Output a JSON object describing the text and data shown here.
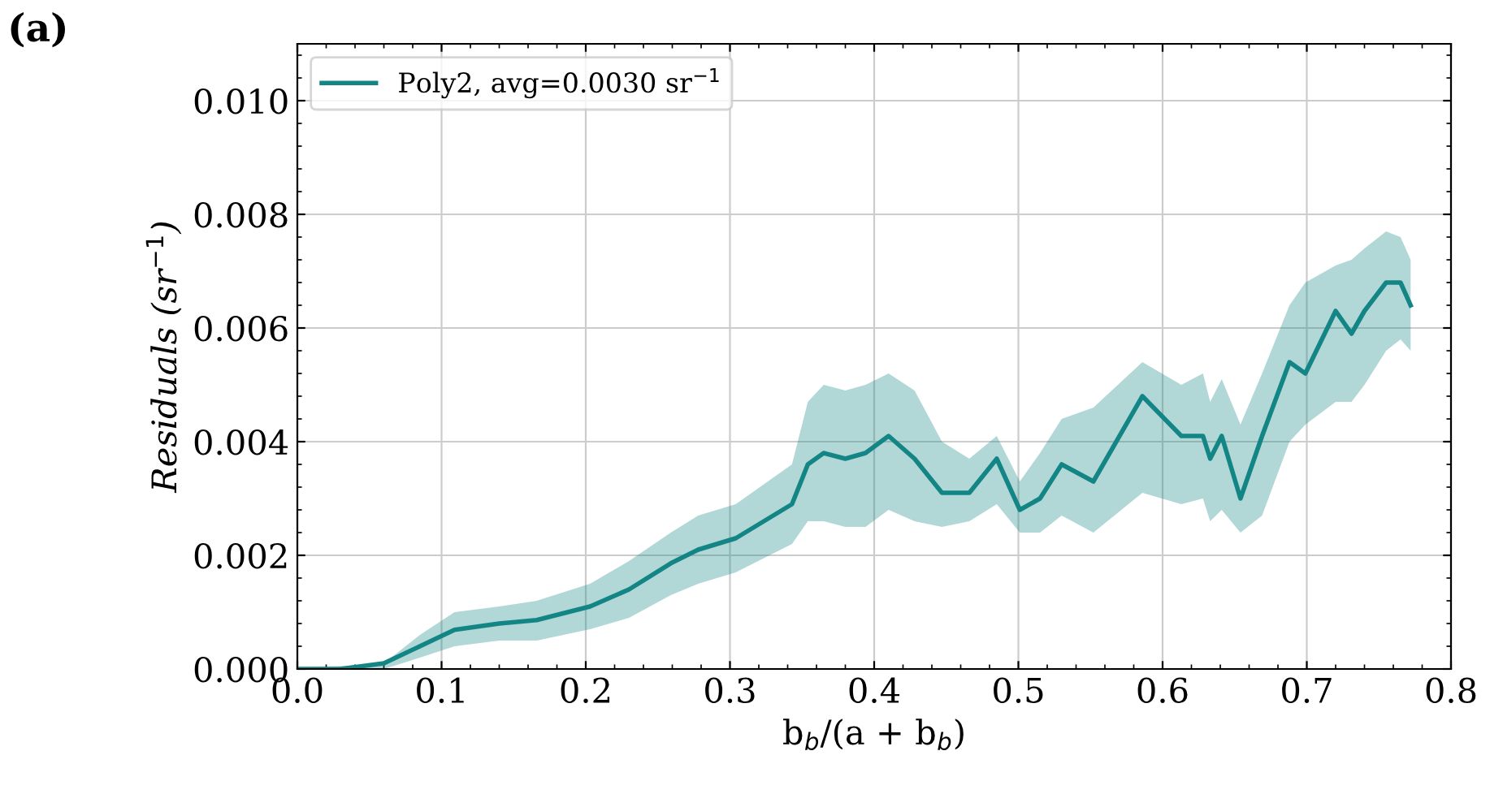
{
  "chart_data": {
    "type": "line",
    "title": "(a)",
    "xlabel": "b$_{b}$/(a + b$_{b}$)",
    "ylabel": "Residuals (sr$^{−1}$)",
    "x": [
      0.0,
      0.03,
      0.06,
      0.085,
      0.109,
      0.14,
      0.166,
      0.203,
      0.23,
      0.259,
      0.278,
      0.304,
      0.343,
      0.354,
      0.365,
      0.38,
      0.394,
      0.41,
      0.428,
      0.447,
      0.466,
      0.485,
      0.501,
      0.515,
      0.53,
      0.552,
      0.586,
      0.613,
      0.628,
      0.633,
      0.641,
      0.654,
      0.669,
      0.688,
      0.699,
      0.72,
      0.731,
      0.74,
      0.755,
      0.765,
      0.772
    ],
    "series": [
      {
        "name": "Poly2, avg=0.0030 sr$^{−1}$",
        "color": "#138585",
        "values": [
          0.0,
          0.0,
          0.0001,
          0.0004,
          0.00069,
          0.0008,
          0.00086,
          0.0011,
          0.0014,
          0.00186,
          0.0021,
          0.0023,
          0.0029,
          0.0036,
          0.0038,
          0.0037,
          0.0038,
          0.0041,
          0.0037,
          0.0031,
          0.0031,
          0.0037,
          0.0028,
          0.003,
          0.0036,
          0.0033,
          0.0048,
          0.0041,
          0.0041,
          0.0037,
          0.0041,
          0.003,
          0.0041,
          0.0054,
          0.0052,
          0.0063,
          0.0059,
          0.0063,
          0.0068,
          0.0068,
          0.0064
        ],
        "lower": [
          0.0,
          0.0,
          0.0,
          0.0002,
          0.0004,
          0.0005,
          0.0005,
          0.0007,
          0.0009,
          0.0013,
          0.0015,
          0.0017,
          0.0022,
          0.0026,
          0.0026,
          0.0025,
          0.0025,
          0.0028,
          0.0026,
          0.0025,
          0.0026,
          0.0029,
          0.0024,
          0.0024,
          0.0027,
          0.0024,
          0.0031,
          0.0029,
          0.003,
          0.0026,
          0.0028,
          0.0024,
          0.0027,
          0.004,
          0.0043,
          0.0047,
          0.0047,
          0.005,
          0.0056,
          0.0058,
          0.0056
        ],
        "upper": [
          3e-05,
          5e-05,
          0.0001,
          0.0006,
          0.001,
          0.0011,
          0.0012,
          0.0015,
          0.0019,
          0.0024,
          0.0027,
          0.0029,
          0.0036,
          0.0047,
          0.005,
          0.0049,
          0.005,
          0.0052,
          0.0049,
          0.004,
          0.0037,
          0.0041,
          0.0033,
          0.0038,
          0.0044,
          0.0046,
          0.0054,
          0.005,
          0.0052,
          0.0047,
          0.0051,
          0.0043,
          0.0052,
          0.0064,
          0.0068,
          0.0071,
          0.0072,
          0.0074,
          0.0077,
          0.0076,
          0.0072
        ]
      }
    ],
    "xlim": [
      0.0,
      0.8
    ],
    "xticks": [
      {
        "value": 0.0,
        "label": "0.0"
      },
      {
        "value": 0.1,
        "label": "0.1"
      },
      {
        "value": 0.2,
        "label": "0.2"
      },
      {
        "value": 0.3,
        "label": "0.3"
      },
      {
        "value": 0.4,
        "label": "0.4"
      },
      {
        "value": 0.5,
        "label": "0.5"
      },
      {
        "value": 0.6,
        "label": "0.6"
      },
      {
        "value": 0.7,
        "label": "0.7"
      },
      {
        "value": 0.8,
        "label": "0.8"
      }
    ],
    "ylim": [
      0.0,
      0.011
    ],
    "yticks": [
      {
        "value": 0.0,
        "label": "0.000"
      },
      {
        "value": 0.002,
        "label": "0.002"
      },
      {
        "value": 0.004,
        "label": "0.004"
      },
      {
        "value": 0.006,
        "label": "0.006"
      },
      {
        "value": 0.008,
        "label": "0.008"
      },
      {
        "value": 0.01,
        "label": "0.010"
      }
    ],
    "grid": true,
    "legend": "top left",
    "line_style": "solid",
    "marker": "none"
  }
}
